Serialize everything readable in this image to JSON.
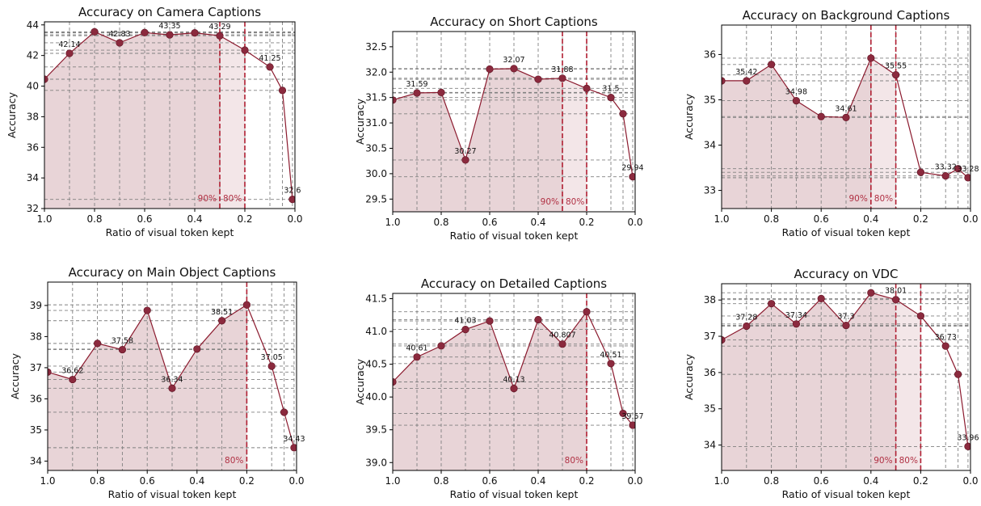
{
  "colors": {
    "line": "#8b1a2e",
    "marker": "#8b2a3e",
    "fill": "#e8d4d7",
    "fill_light": "#f3e6e8",
    "grid": "#808080",
    "marker_line": "#b01e32",
    "marker_text": "#b03043"
  },
  "chart_data": [
    {
      "type": "line",
      "title": "Accuracy on Camera Captions",
      "xlabel": "Ratio of visual token kept",
      "ylabel": "Accuracy",
      "xlim": [
        1.0,
        0.0
      ],
      "ylim": [
        32,
        44.2
      ],
      "xticks": [
        1.0,
        0.8,
        0.6,
        0.4,
        0.2,
        0.0
      ],
      "xtick_labels": [
        "1.0",
        "0.8",
        "0.6",
        "0.4",
        "0.2",
        "0.0"
      ],
      "yticks": [
        32,
        34,
        36,
        38,
        40,
        42,
        44
      ],
      "ytick_labels": [
        "32",
        "34",
        "36",
        "38",
        "40",
        "42",
        "44"
      ],
      "grid": true,
      "x": [
        1.0,
        0.9,
        0.8,
        0.7,
        0.6,
        0.5,
        0.4,
        0.3,
        0.2,
        0.1,
        0.05,
        0.01
      ],
      "y": [
        40.45,
        42.14,
        43.55,
        42.83,
        43.5,
        43.35,
        43.48,
        43.29,
        42.35,
        41.25,
        39.72,
        32.6
      ],
      "labels": [
        {
          "i": 1,
          "text": "42.14"
        },
        {
          "i": 3,
          "text": "42.83"
        },
        {
          "i": 5,
          "text": "43.35"
        },
        {
          "i": 7,
          "text": "43.29"
        },
        {
          "i": 9,
          "text": "41.25"
        },
        {
          "i": 11,
          "text": "32.6"
        }
      ],
      "markers": [
        {
          "x": 0.3,
          "text": "90%"
        },
        {
          "x": 0.2,
          "text": "80%"
        }
      ]
    },
    {
      "type": "line",
      "title": "Accuracy on Short Captions",
      "xlabel": "Ratio of visual token kept",
      "ylabel": "Accuracy",
      "xlim": [
        1.0,
        0.0
      ],
      "ylim": [
        29.25,
        32.8
      ],
      "xticks": [
        1.0,
        0.8,
        0.6,
        0.4,
        0.2,
        0.0
      ],
      "xtick_labels": [
        "1.0",
        "0.8",
        "0.6",
        "0.4",
        "0.2",
        "0.0"
      ],
      "yticks": [
        29.5,
        30.0,
        30.5,
        31.0,
        31.5,
        32.0,
        32.5
      ],
      "ytick_labels": [
        "29.5",
        "30.0",
        "30.5",
        "31.0",
        "31.5",
        "32.0",
        "32.5"
      ],
      "grid": true,
      "x": [
        1.0,
        0.9,
        0.8,
        0.7,
        0.6,
        0.5,
        0.4,
        0.3,
        0.2,
        0.1,
        0.05,
        0.01
      ],
      "y": [
        31.45,
        31.59,
        31.6,
        30.27,
        32.06,
        32.07,
        31.86,
        31.88,
        31.68,
        31.5,
        31.18,
        29.94
      ],
      "labels": [
        {
          "i": 1,
          "text": "31.59"
        },
        {
          "i": 3,
          "text": "30.27"
        },
        {
          "i": 5,
          "text": "32.07"
        },
        {
          "i": 7,
          "text": "31.88"
        },
        {
          "i": 9,
          "text": "31.5"
        },
        {
          "i": 11,
          "text": "29.94"
        }
      ],
      "markers": [
        {
          "x": 0.3,
          "text": "90%"
        },
        {
          "x": 0.2,
          "text": "80%"
        }
      ]
    },
    {
      "type": "line",
      "title": "Accuracy on Background Captions",
      "xlabel": "Ratio of visual token kept",
      "ylabel": "Accuracy",
      "xlim": [
        1.0,
        0.0
      ],
      "ylim": [
        32.6,
        36.65
      ],
      "xticks": [
        1.0,
        0.8,
        0.6,
        0.4,
        0.2,
        0.0
      ],
      "xtick_labels": [
        "1.0",
        "0.8",
        "0.6",
        "0.4",
        "0.2",
        "0.0"
      ],
      "yticks": [
        33,
        34,
        35,
        36
      ],
      "ytick_labels": [
        "33",
        "34",
        "35",
        "36"
      ],
      "grid": true,
      "x": [
        1.0,
        0.9,
        0.8,
        0.7,
        0.6,
        0.5,
        0.4,
        0.3,
        0.2,
        0.1,
        0.05,
        0.01
      ],
      "y": [
        35.42,
        35.42,
        35.78,
        34.98,
        34.63,
        34.61,
        35.92,
        35.55,
        33.4,
        33.32,
        33.48,
        33.28
      ],
      "labels": [
        {
          "i": 1,
          "text": "35.42"
        },
        {
          "i": 3,
          "text": "34.98"
        },
        {
          "i": 5,
          "text": "34.61"
        },
        {
          "i": 7,
          "text": "35.55"
        },
        {
          "i": 9,
          "text": "33.32"
        },
        {
          "i": 11,
          "text": "33.28"
        }
      ],
      "markers": [
        {
          "x": 0.4,
          "text": "90%"
        },
        {
          "x": 0.3,
          "text": "80%"
        }
      ]
    },
    {
      "type": "line",
      "title": "Accuracy on Main Object Captions",
      "xlabel": "Ratio of visual token kept",
      "ylabel": "Accuracy",
      "xlim": [
        1.0,
        0.0
      ],
      "ylim": [
        33.7,
        39.75
      ],
      "xticks": [
        1.0,
        0.8,
        0.6,
        0.4,
        0.2,
        0.0
      ],
      "xtick_labels": [
        "1.0",
        "0.8",
        "0.6",
        "0.4",
        "0.2",
        "0.0"
      ],
      "yticks": [
        34,
        35,
        36,
        37,
        38,
        39
      ],
      "ytick_labels": [
        "34",
        "35",
        "36",
        "37",
        "38",
        "39"
      ],
      "grid": true,
      "x": [
        1.0,
        0.9,
        0.8,
        0.7,
        0.6,
        0.5,
        0.4,
        0.3,
        0.2,
        0.1,
        0.05,
        0.01
      ],
      "y": [
        36.86,
        36.62,
        37.78,
        37.58,
        38.84,
        36.34,
        37.6,
        38.51,
        39.02,
        37.05,
        35.57,
        34.43
      ],
      "labels": [
        {
          "i": 1,
          "text": "36.62"
        },
        {
          "i": 3,
          "text": "37.58"
        },
        {
          "i": 5,
          "text": "36.34"
        },
        {
          "i": 7,
          "text": "38.51"
        },
        {
          "i": 9,
          "text": "37.05"
        },
        {
          "i": 11,
          "text": "34.43"
        }
      ],
      "markers": [
        {
          "x": 0.2,
          "text": "80%"
        }
      ]
    },
    {
      "type": "line",
      "title": "Accuracy on Detailed Captions",
      "xlabel": "Ratio of visual token kept",
      "ylabel": "Accuracy",
      "xlim": [
        1.0,
        0.0
      ],
      "ylim": [
        38.88,
        41.58
      ],
      "xticks": [
        1.0,
        0.8,
        0.6,
        0.4,
        0.2,
        0.0
      ],
      "xtick_labels": [
        "1.0",
        "0.8",
        "0.6",
        "0.4",
        "0.2",
        "0.0"
      ],
      "yticks": [
        39.0,
        39.5,
        40.0,
        40.5,
        41.0,
        41.5
      ],
      "ytick_labels": [
        "39.0",
        "39.5",
        "40.0",
        "40.5",
        "41.0",
        "41.5"
      ],
      "grid": true,
      "x": [
        1.0,
        0.9,
        0.8,
        0.7,
        0.6,
        0.5,
        0.4,
        0.3,
        0.2,
        0.1,
        0.05,
        0.01
      ],
      "y": [
        40.23,
        40.61,
        40.78,
        41.03,
        41.16,
        40.13,
        41.18,
        40.807,
        41.3,
        40.51,
        39.75,
        39.57
      ],
      "labels": [
        {
          "i": 1,
          "text": "40.61"
        },
        {
          "i": 3,
          "text": "41.03"
        },
        {
          "i": 5,
          "text": "40.13"
        },
        {
          "i": 7,
          "text": "40.807"
        },
        {
          "i": 9,
          "text": "40.51"
        },
        {
          "i": 11,
          "text": "39.57"
        }
      ],
      "markers": [
        {
          "x": 0.2,
          "text": "80%"
        }
      ]
    },
    {
      "type": "line",
      "title": "Accuracy on VDC",
      "xlabel": "Ratio of visual token kept",
      "ylabel": "Accuracy",
      "xlim": [
        1.0,
        0.0
      ],
      "ylim": [
        33.3,
        38.45
      ],
      "xticks": [
        1.0,
        0.8,
        0.6,
        0.4,
        0.2,
        0.0
      ],
      "xtick_labels": [
        "1.0",
        "0.8",
        "0.6",
        "0.4",
        "0.2",
        "0.0"
      ],
      "yticks": [
        34,
        35,
        36,
        37,
        38
      ],
      "ytick_labels": [
        "34",
        "35",
        "36",
        "37",
        "38"
      ],
      "grid": true,
      "x": [
        1.0,
        0.9,
        0.8,
        0.7,
        0.6,
        0.5,
        0.4,
        0.3,
        0.2,
        0.1,
        0.05,
        0.01
      ],
      "y": [
        36.9,
        37.28,
        37.9,
        37.34,
        38.04,
        37.3,
        38.2,
        38.01,
        37.56,
        36.73,
        35.95,
        33.96
      ],
      "labels": [
        {
          "i": 1,
          "text": "37.28"
        },
        {
          "i": 3,
          "text": "37.34"
        },
        {
          "i": 5,
          "text": "37.3"
        },
        {
          "i": 7,
          "text": "38.01"
        },
        {
          "i": 9,
          "text": "36.73"
        },
        {
          "i": 11,
          "text": "33.96"
        }
      ],
      "markers": [
        {
          "x": 0.3,
          "text": "90%"
        },
        {
          "x": 0.2,
          "text": "80%"
        }
      ]
    }
  ]
}
